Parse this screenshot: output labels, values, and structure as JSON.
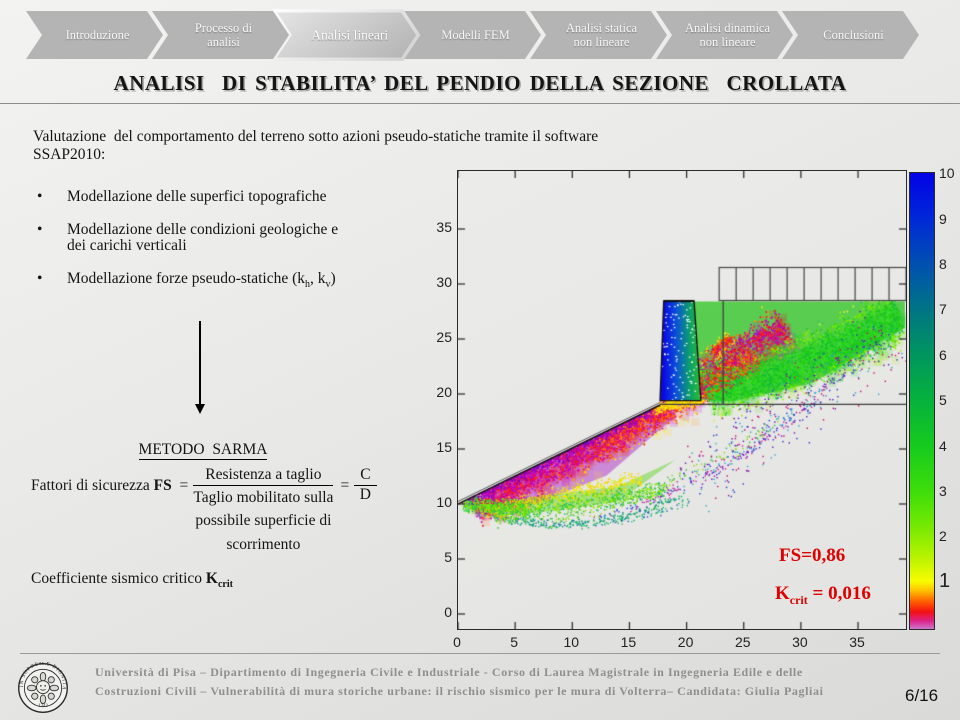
{
  "colors": {
    "accent_red": "#e10000",
    "nav_gray": "#b4b4b4",
    "wall_blue": "#0a0ae6"
  },
  "nav": {
    "items": [
      {
        "label": "Introduzione",
        "active": false
      },
      {
        "label": "Processo di analisi",
        "active": false
      },
      {
        "label": "Analisi lineari",
        "active": true
      },
      {
        "label": "Modelli FEM",
        "active": false
      },
      {
        "label": "Analisi statica non lineare",
        "active": false
      },
      {
        "label": "Analisi dinamica non lineare",
        "active": false
      },
      {
        "label": "Conclusioni",
        "active": false
      }
    ]
  },
  "title": "ANALISI  DI STABILITA’ DEL PENDIO DELLA SEZIONE  CROLLATA",
  "intro": "Valutazione  del comportamento del terreno sotto azioni pseudo-statiche tramite il software SSAP2010:",
  "bullet_char": "•",
  "bullets": [
    {
      "text": "Modellazione delle superfici topografiche"
    },
    {
      "line1": "Modellazione delle condizioni  geologiche e",
      "line2": "dei carichi verticali"
    },
    {
      "pre": "Modellazione forze pseudo-statiche (k",
      "sub1": "h",
      "mid": ", k",
      "sub2": "v",
      "post": ")"
    }
  ],
  "method": {
    "heading": "METODO  SARMA",
    "label_pre": "Fattori di sicurezza ",
    "label_bold": "FS",
    "eq": "  =",
    "numerator": "Resistenza a taglio",
    "denominator_lines": [
      "Taglio mobilitato sulla",
      "possibile superficie di",
      "scorrimento"
    ],
    "eq2": "=",
    "frac2_num": "C",
    "frac2_den": "D"
  },
  "kcrit_line": {
    "pre": "Coefficiente sismico critico ",
    "k": "K",
    "sub": "crit"
  },
  "plot_labels": {
    "fs": "FS=0,86",
    "k_pre": "K",
    "k_sub": "crit",
    "k_post": " = 0,016"
  },
  "footer": {
    "line1": "Università di Pisa – Dipartimento di Ingegneria Civile e Industriale - Corso di Laurea Magistrale in Ingegneria Edile e delle",
    "line2": "Costruzioni Civili – Vulnerabilità di mura storiche urbane: il rischio sismico per le mura di Volterra– Candidata:  Giulia Pagliai",
    "page": "6/16",
    "logo_text_top": "IN SUPREMÆ DIGNITATIS",
    "logo_text_bottom": "· 1343 ·"
  },
  "chart_data": {
    "type": "scatter",
    "title": "",
    "description": "SSAP2010 pseudo-static slope stability map: cloud of trial slip surfaces coloured by factor of safety; collapsed wall section of Volterra",
    "x_ticks": [
      0,
      5,
      10,
      15,
      20,
      25,
      30,
      35
    ],
    "y_ticks": [
      0,
      5,
      10,
      15,
      20,
      25,
      30,
      35
    ],
    "x_range": [
      0,
      39.2
    ],
    "y_range": [
      0,
      40.3
    ],
    "annotations": [
      "FS=0,86",
      "Kcrit = 0,016"
    ],
    "colorbar": {
      "labels": [
        10,
        9,
        8,
        7,
        6,
        5,
        4,
        3,
        2,
        1
      ],
      "top_value_frac": 0.005,
      "step_frac": 0.0995,
      "stops": [
        [
          0,
          "#0202e6"
        ],
        [
          0.1,
          "#0028d8"
        ],
        [
          0.2,
          "#0050b0"
        ],
        [
          0.3,
          "#007585"
        ],
        [
          0.4,
          "#00965e"
        ],
        [
          0.5,
          "#06b23c"
        ],
        [
          0.6,
          "#16cb1e"
        ],
        [
          0.7,
          "#3ede0a"
        ],
        [
          0.78,
          "#7aea02"
        ],
        [
          0.85,
          "#c0f400"
        ],
        [
          0.895,
          "#f8fc00"
        ],
        [
          0.915,
          "#ffc400"
        ],
        [
          0.94,
          "#ff5e00"
        ],
        [
          0.962,
          "#f31111"
        ],
        [
          0.982,
          "#dd2288"
        ],
        [
          1,
          "#cc77cc"
        ]
      ]
    },
    "seed": 123457,
    "clip": [
      [
        0,
        10.05
      ],
      [
        17.68,
        19.05
      ],
      [
        17.68,
        28.45
      ],
      [
        39.2,
        28.45
      ],
      [
        39.2,
        0
      ],
      [
        0,
        0
      ]
    ],
    "structures": {
      "slope_line": {
        "from": [
          0,
          10
        ],
        "to": [
          17.68,
          19.0
        ]
      },
      "wall": {
        "pts": [
          [
            18.0,
            28.45
          ],
          [
            20.65,
            28.45
          ],
          [
            21.25,
            19.4
          ],
          [
            17.68,
            19.4
          ]
        ],
        "gradient": [
          "#0a0ae6",
          "#0a52d8",
          "#0b9e6e",
          "#2ec42a"
        ]
      },
      "building": {
        "x1": 22.85,
        "x2": 39.2,
        "y1": 28.5,
        "y2": 31.5,
        "cells": 11
      },
      "hline": {
        "y": 19.05,
        "x1": 17.68,
        "x2": 39.2
      },
      "vline": {
        "x": 23.2,
        "y1": 19.05,
        "y2": 28.45
      }
    },
    "wall_speckles": 110,
    "underlays": [
      {
        "pts": [
          [
            20.7,
            28.4
          ],
          [
            39.1,
            28.4
          ],
          [
            39.1,
            26.0
          ],
          [
            31,
            21.0
          ],
          [
            24,
            19.3
          ],
          [
            20.9,
            19.5
          ],
          [
            20.9,
            24
          ]
        ],
        "c": "#29c41c",
        "a": 0.75
      },
      {
        "pts": [
          [
            0.4,
            10.0
          ],
          [
            17.6,
            18.9
          ],
          [
            18.6,
            17.6
          ],
          [
            13,
            12.6
          ],
          [
            6,
            9.7
          ]
        ],
        "c": "#a000c0",
        "a": 0.4
      },
      {
        "pts": [
          [
            0.3,
            9.9
          ],
          [
            6,
            10.6
          ],
          [
            14,
            11.6
          ],
          [
            19,
            14
          ],
          [
            14,
            10.2
          ],
          [
            7,
            9.2
          ],
          [
            2,
            9.3
          ]
        ],
        "c": "#55d515",
        "a": 0.45
      }
    ],
    "arcs": [
      {
        "p0": [
          0.6,
          9.9
        ],
        "p1": [
          9,
          6.0
        ],
        "p2": [
          19.5,
          10.8
        ],
        "colors": [
          "#11a078",
          "#22bb55",
          "#0f9090"
        ],
        "n": 230,
        "spread": 0.5,
        "size": 1.5
      },
      {
        "p0": [
          2,
          9.6
        ],
        "p1": [
          11,
          6.6
        ],
        "p2": [
          20,
          10.2
        ],
        "colors": [
          "#18b060",
          "#30c080",
          "#2255cc"
        ],
        "n": 150,
        "spread": 0.7,
        "size": 1.4
      },
      {
        "p0": [
          12,
          8.8
        ],
        "p1": [
          24,
          12
        ],
        "p2": [
          35,
          23.5
        ],
        "colors": [
          "#2244cc",
          "#22aacc",
          "#cc2299"
        ],
        "n": 140,
        "spread": 0.6,
        "size": 1.4
      },
      {
        "p0": [
          15,
          9.6
        ],
        "p1": [
          27,
          14
        ],
        "p2": [
          37,
          25
        ],
        "colors": [
          "#cc22aa",
          "#3333cc"
        ],
        "n": 110,
        "spread": 0.8,
        "size": 1.4
      },
      {
        "p0": [
          8,
          8.4
        ],
        "p1": [
          18,
          10.5
        ],
        "p2": [
          28,
          17.5
        ],
        "colors": [
          "#22bb44",
          "#88dd00"
        ],
        "n": 160,
        "spread": 0.8,
        "size": 1.4
      }
    ],
    "bands": [
      {
        "a": [
          1.2,
          9.9
        ],
        "b": [
          28.5,
          26.3
        ],
        "w": 2.6,
        "bow": 0.6,
        "count": 3200,
        "size": 1.7,
        "wash": true,
        "palette": [
          [
            0.45,
            [
              "#d400aa",
              "#e4003c",
              "#ff2600",
              "#b000d0"
            ]
          ],
          [
            0.75,
            [
              "#ff6a00",
              "#ee1133",
              "#cc00cc"
            ]
          ],
          [
            2,
            [
              "#ffd900",
              "#ffee00",
              "#ff9900"
            ]
          ]
        ]
      },
      {
        "a": [
          0.4,
          10.15
        ],
        "b": [
          16.8,
          18.5
        ],
        "w": 0.9,
        "count": 900,
        "size": 1.5,
        "palette": [
          [
            2,
            [
              "#8800cc",
              "#aa00bb",
              "#cc00aa",
              "#6600cc"
            ]
          ]
        ]
      },
      {
        "a": [
          2,
          9.4
        ],
        "b": [
          16,
          12.2
        ],
        "w": 1.1,
        "count": 500,
        "size": 1.5,
        "palette": [
          [
            2,
            [
              "#f0f000",
              "#d8e800",
              "#ffcc00"
            ]
          ]
        ]
      },
      {
        "a": [
          0.5,
          9.9
        ],
        "b": [
          6,
          9.6
        ],
        "w": 1.0,
        "count": 450,
        "size": 1.5,
        "palette": [
          [
            2,
            [
              "#44dd11",
              "#88ee00",
              "#22cc44"
            ]
          ]
        ]
      },
      {
        "a": [
          3,
          8.9
        ],
        "b": [
          18,
          11.3
        ],
        "w": 1.2,
        "count": 600,
        "size": 1.5,
        "palette": [
          [
            2,
            [
              "#33cc22",
              "#66dd00",
              "#22bb66",
              "#99ee00"
            ]
          ]
        ]
      },
      {
        "a": [
          21.5,
          20.3
        ],
        "b": [
          38.5,
          27.3
        ],
        "w": 3.3,
        "bow": 0.8,
        "count": 2600,
        "size": 1.7,
        "wash": true,
        "palette": [
          [
            0.45,
            [
              "#22cc11",
              "#33dd22",
              "#11bb33"
            ]
          ],
          [
            0.75,
            [
              "#55dd00",
              "#22cc22",
              "#88ee00"
            ]
          ],
          [
            2,
            [
              "#aaee00",
              "#ddee44",
              "#33cc55"
            ]
          ]
        ]
      },
      {
        "a": [
          12,
          14.5
        ],
        "b": [
          26,
          23.5
        ],
        "w": 1.6,
        "count": 900,
        "size": 1.6,
        "palette": [
          [
            2,
            [
              "#ff8800",
              "#ff5500",
              "#ee2200",
              "#dd00aa"
            ]
          ]
        ]
      },
      {
        "a": [
          20,
          11.8
        ],
        "b": [
          38,
          25.3
        ],
        "w": 4.2,
        "count": 420,
        "size": 1.4,
        "palette": [
          [
            2,
            [
              "#2233dd",
              "#6611cc",
              "#cc0077",
              "#22aacc"
            ]
          ]
        ]
      },
      {
        "a": [
          17.2,
          18.8
        ],
        "b": [
          21.3,
          19.6
        ],
        "w": 0.7,
        "count": 350,
        "size": 1.5,
        "palette": [
          [
            2,
            [
              "#ffee00",
              "#ffcc00",
              "#f0f000"
            ]
          ]
        ]
      },
      {
        "a": [
          22.3,
          23.8
        ],
        "b": [
          23.8,
          25.2
        ],
        "w": 0.8,
        "count": 260,
        "size": 1.5,
        "palette": [
          [
            0.5,
            [
              "#ee2200",
              "#ff6600",
              "#cc00aa"
            ]
          ],
          [
            2,
            [
              "#ffee00",
              "#ffaa00"
            ]
          ]
        ]
      }
    ]
  }
}
